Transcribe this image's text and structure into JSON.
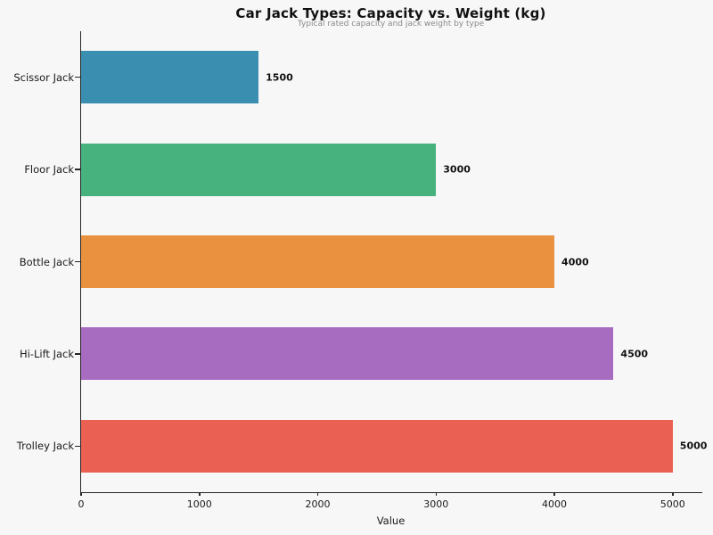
{
  "chart_data": {
    "type": "bar",
    "orientation": "horizontal",
    "title": "Car Jack Types: Capacity vs. Weight (kg)",
    "subtitle": "Typical rated capacity and jack weight by type",
    "categories": [
      "Scissor Jack",
      "Floor Jack",
      "Bottle Jack",
      "Hi-Lift Jack",
      "Trolley Jack"
    ],
    "values": [
      1500,
      3000,
      4000,
      4500,
      5000
    ],
    "value_labels": [
      "1500",
      "3000",
      "4000",
      "4500",
      "5000"
    ],
    "bar_colors": [
      "#3a8fb0",
      "#48b27f",
      "#e9913e",
      "#a76cc0",
      "#ea6053"
    ],
    "xlabel": "Value",
    "x_ticks": [
      0,
      1000,
      2000,
      3000,
      4000,
      5000
    ],
    "xlim": [
      0,
      5250
    ],
    "grid": false,
    "legend": null,
    "background_color": "#f7f7f7",
    "axis_color": "#262626"
  }
}
